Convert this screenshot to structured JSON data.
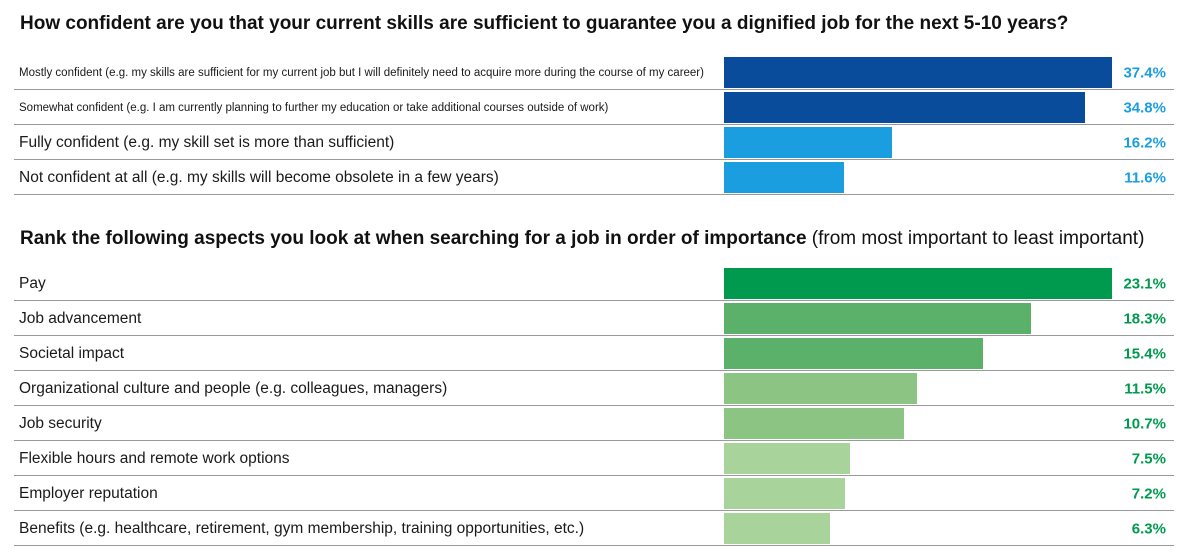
{
  "section1": {
    "title": "How confident are you that your current skills are sufficient to guarantee you a dignified job for the next 5-10 years?"
  },
  "section2": {
    "title_bold": "Rank the following aspects you look at when searching for a job in order of importance",
    "title_normal": " (from most important to least important)"
  },
  "chart_data": [
    {
      "type": "bar",
      "orientation": "horizontal",
      "title": "How confident are you that your current skills are sufficient to guarantee you a dignified job for the next 5-10 years?",
      "xlim": [
        0,
        37.4
      ],
      "categories": [
        "Mostly confident (e.g. my skills are sufficient for my current job but I will definitely need to acquire more during the course of my career)",
        "Somewhat confident (e.g. I am currently planning to further my education or take additional courses outside of work)",
        "Fully confident (e.g. my skill set is more than sufficient)",
        "Not confident at all (e.g. my skills will become obsolete in a few years)"
      ],
      "values": [
        37.4,
        34.8,
        16.2,
        11.6
      ],
      "value_labels": [
        "37.4%",
        "34.8%",
        "16.2%",
        "11.6%"
      ],
      "bar_colors": [
        "#0a4c9c",
        "#0a4c9c",
        "#1b9ee0",
        "#1b9ee0"
      ],
      "value_colors": [
        "#1b9ee0",
        "#1b9ee0",
        "#1b9ee0",
        "#1b9ee0"
      ],
      "label_small": [
        true,
        true,
        false,
        false
      ]
    },
    {
      "type": "bar",
      "orientation": "horizontal",
      "title": "Rank the following aspects you look at when searching for a job in order of importance (from most important to least important)",
      "xlim": [
        0,
        23.1
      ],
      "categories": [
        "Pay",
        "Job advancement",
        "Societal impact",
        "Organizational culture and people (e.g. colleagues, managers)",
        "Job security",
        "Flexible hours and remote work options",
        "Employer reputation",
        "Benefits (e.g. healthcare, retirement, gym membership, training opportunities, etc.)"
      ],
      "values": [
        23.1,
        18.3,
        15.4,
        11.5,
        10.7,
        7.5,
        7.2,
        6.3
      ],
      "value_labels": [
        "23.1%",
        "18.3%",
        "15.4%",
        "11.5%",
        "10.7%",
        "7.5%",
        "7.2%",
        "6.3%"
      ],
      "bar_colors": [
        "#009a4e",
        "#5bb06a",
        "#5bb06a",
        "#8cc583",
        "#8cc583",
        "#a8d49c",
        "#a8d49c",
        "#a8d49c"
      ],
      "value_colors": [
        "#009a4e",
        "#009a4e",
        "#009a4e",
        "#009a4e",
        "#009a4e",
        "#009a4e",
        "#009a4e",
        "#009a4e"
      ],
      "label_small": [
        false,
        false,
        false,
        false,
        false,
        false,
        false,
        false
      ]
    }
  ]
}
